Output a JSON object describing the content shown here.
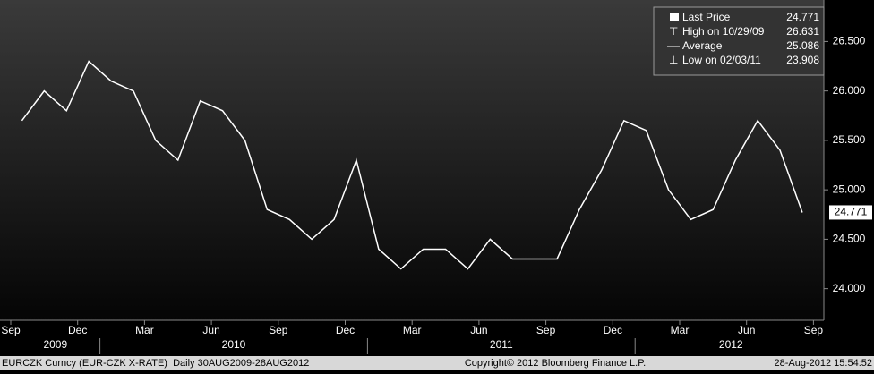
{
  "chart_data": {
    "type": "line",
    "color": "#ffffff",
    "x": [
      "2009-09",
      "2009-10",
      "2009-11",
      "2009-12",
      "2010-01",
      "2010-02",
      "2010-03",
      "2010-04",
      "2010-05",
      "2010-06",
      "2010-07",
      "2010-08",
      "2010-09",
      "2010-10",
      "2010-11",
      "2010-12",
      "2011-01",
      "2011-02",
      "2011-03",
      "2011-04",
      "2011-05",
      "2011-06",
      "2011-07",
      "2011-08",
      "2011-09",
      "2011-10",
      "2011-11",
      "2011-12",
      "2012-01",
      "2012-02",
      "2012-03",
      "2012-04",
      "2012-05",
      "2012-06",
      "2012-07",
      "2012-08"
    ],
    "values": [
      25.7,
      26.0,
      25.8,
      26.3,
      26.1,
      26.0,
      25.5,
      25.3,
      25.9,
      25.8,
      25.5,
      24.8,
      24.7,
      24.5,
      24.7,
      25.3,
      24.4,
      24.2,
      24.4,
      24.4,
      24.2,
      24.5,
      24.3,
      24.3,
      24.3,
      24.8,
      25.2,
      25.7,
      25.6,
      25.0,
      24.7,
      24.8,
      25.3,
      25.7,
      25.4,
      24.771
    ],
    "ylim": [
      23.68,
      26.92
    ],
    "yticks": [
      {
        "value": 24.0,
        "label": "24.000"
      },
      {
        "value": 24.5,
        "label": "24.500"
      },
      {
        "value": 25.0,
        "label": "25.000"
      },
      {
        "value": 25.5,
        "label": "25.500"
      },
      {
        "value": 26.0,
        "label": "26.000"
      },
      {
        "value": 26.5,
        "label": "26.500"
      }
    ],
    "xticks": [
      {
        "value": "2009-09",
        "label": "Sep"
      },
      {
        "value": "2009-12",
        "label": "Dec"
      },
      {
        "value": "2010-03",
        "label": "Mar"
      },
      {
        "value": "2010-06",
        "label": "Jun"
      },
      {
        "value": "2010-09",
        "label": "Sep"
      },
      {
        "value": "2010-12",
        "label": "Dec"
      },
      {
        "value": "2011-03",
        "label": "Mar"
      },
      {
        "value": "2011-06",
        "label": "Jun"
      },
      {
        "value": "2011-09",
        "label": "Sep"
      },
      {
        "value": "2011-12",
        "label": "Dec"
      },
      {
        "value": "2012-03",
        "label": "Mar"
      },
      {
        "value": "2012-06",
        "label": "Jun"
      },
      {
        "value": "2012-09",
        "label": "Sep"
      }
    ],
    "years": [
      "2009",
      "2010",
      "2011",
      "2012"
    ],
    "last_price_tag": 24.771,
    "legend": [
      {
        "label": "Last Price",
        "value": 24.771
      },
      {
        "label": "High on 10/29/09",
        "value": 26.631
      },
      {
        "label": "Average",
        "value": 25.086
      },
      {
        "label": "Low on 02/03/11",
        "value": 23.908
      }
    ],
    "footer": {
      "left": "EURCZK Curncy (EUR-CZK X-RATE)  Daily 30AUG2009-28AUG2012",
      "center": "Copyright© 2012 Bloomberg Finance L.P.",
      "right": "28-Aug-2012 15:54:52"
    }
  }
}
